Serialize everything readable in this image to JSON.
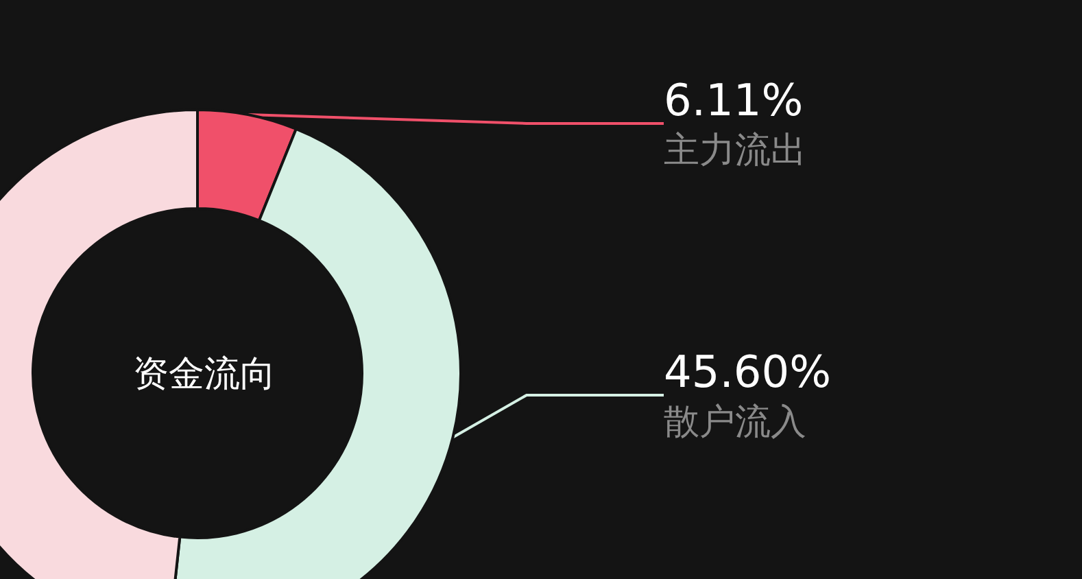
{
  "chart_data": {
    "type": "donut",
    "title": "资金流向",
    "categories": [
      "主力流出",
      "散户流入",
      null
    ],
    "values": [
      6.11,
      45.6,
      48.29
    ],
    "colors": [
      "#f0506a",
      "#d5f0e4",
      "#f9dade"
    ],
    "value_labels": [
      "6.11%",
      "45.60%",
      null
    ],
    "legend": false
  }
}
